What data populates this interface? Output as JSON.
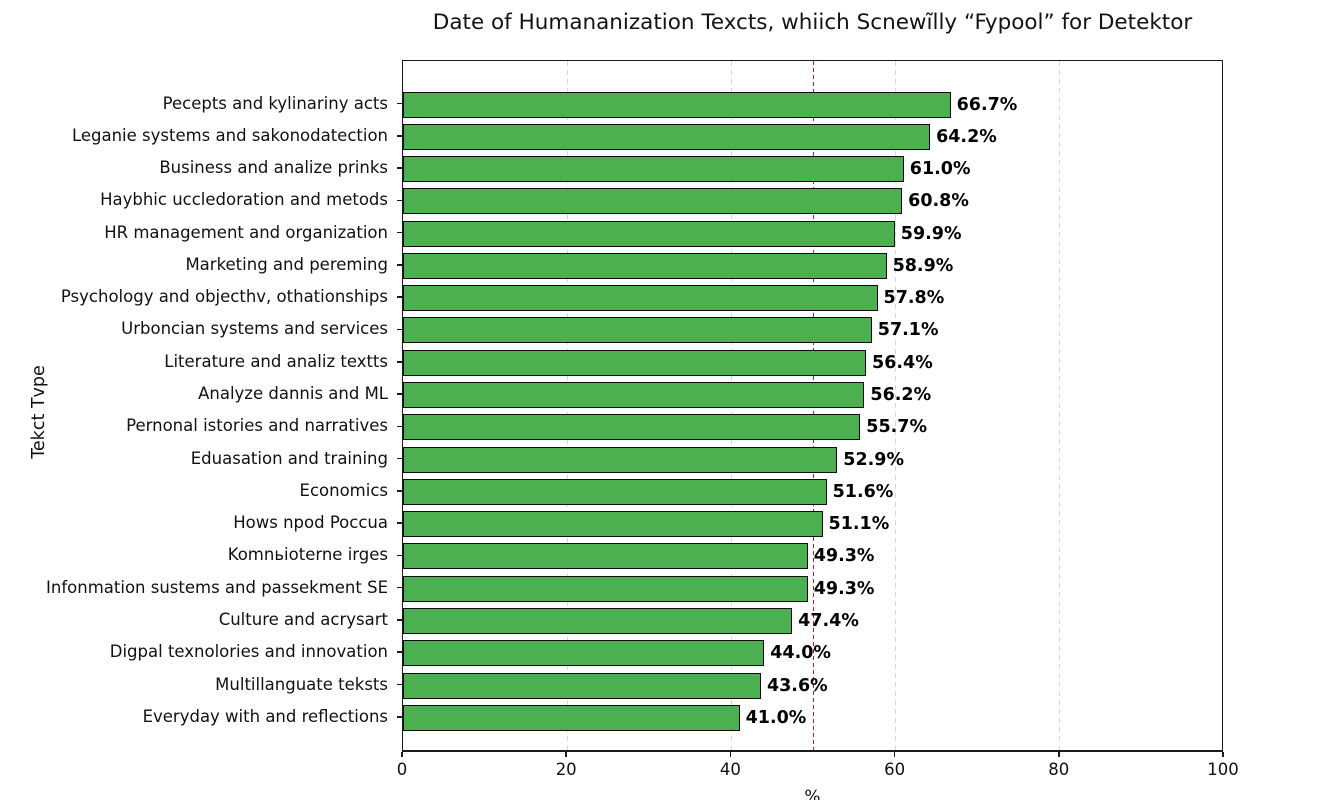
{
  "chart_data": {
    "type": "bar",
    "orientation": "horizontal",
    "title": "Date of Humananization Texcts, whiich Scnewĩlly “Fypool” for Detektor",
    "xlabel": "%",
    "ylabel": "Tekct Tvpe",
    "xlim": [
      0,
      100
    ],
    "xticks": [
      0,
      20,
      40,
      60,
      80,
      100
    ],
    "grid": "vertical dashed gridlines at x ticks",
    "legend": "none",
    "reference_line": {
      "x": 50,
      "style": "dashed",
      "color": "#b22222"
    },
    "bar_color": "#4caf50",
    "bar_edge_color": "#0d0d0d",
    "categories": [
      "Pecepts and kylinariny acts",
      "Leganie systems and sakonodatection",
      "Business and analize prinks",
      "Haybhic uccledoration and metods",
      "HR management and organization",
      "Marketing and pereming",
      "Psychology and objecthv, othationships",
      "Urboncian systems and services",
      "Literature and analiz textts",
      "Analyze dannis and ML",
      "Pernonal istories and narratives",
      "Eduasation and training",
      "Economics",
      "Hows npod Poccua",
      "Komnьioterne irges",
      "Infonmation sustems and passekment SE",
      "Culture and acrysart",
      "Digpal texnolories and innovation",
      "Multillanguate teksts",
      "Everyday with and reflections"
    ],
    "values": [
      66.7,
      64.2,
      61.0,
      60.8,
      59.9,
      58.9,
      57.8,
      57.1,
      56.4,
      56.2,
      55.7,
      52.9,
      51.6,
      51.1,
      49.3,
      49.3,
      47.4,
      44.0,
      43.6,
      41.0
    ],
    "value_labels": [
      "66.7%",
      "64.2%",
      "61.0%",
      "60.8%",
      "59.9%",
      "58.9%",
      "57.8%",
      "57.1%",
      "56.4%",
      "56.2%",
      "55.7%",
      "52.9%",
      "51.6%",
      "51.1%",
      "49.3%",
      "49.3%",
      "47.4%",
      "44.0%",
      "43.6%",
      "41.0%"
    ]
  }
}
